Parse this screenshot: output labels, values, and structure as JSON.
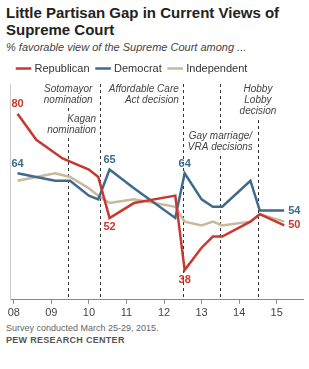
{
  "chart_data": {
    "type": "line",
    "title": "Little Partisan Gap in Current Views of Supreme Court",
    "subtitle": "% favorable view of the Supreme Court among ...",
    "note": "Survey conducted March 25-29, 2015.",
    "source": "PEW RESEARCH CENTER",
    "xlim": [
      2007.9,
      2015.7
    ],
    "xticks": [
      {
        "value": 2008,
        "label": "08"
      },
      {
        "value": 2009,
        "label": "09"
      },
      {
        "value": 2010,
        "label": "10"
      },
      {
        "value": 2011,
        "label": "11"
      },
      {
        "value": 2012,
        "label": "12"
      },
      {
        "value": 2013,
        "label": "13"
      },
      {
        "value": 2014,
        "label": "14"
      },
      {
        "value": 2015,
        "label": "15"
      }
    ],
    "ylim": [
      30,
      88
    ],
    "tick_labels": "x",
    "grid": false,
    "legend": "top",
    "series": [
      {
        "name": "Republican",
        "color": "#c8382e",
        "x": [
          2008.1,
          2008.6,
          2009.3,
          2010.0,
          2010.25,
          2010.55,
          2011.2,
          2012.3,
          2012.55,
          2013.0,
          2013.3,
          2013.55,
          2014.3,
          2014.55,
          2015.2
        ],
        "values": [
          80,
          73,
          68,
          65,
          63,
          52,
          56,
          58,
          38,
          44,
          47,
          47,
          51,
          53,
          50
        ],
        "value_labels": [
          "80",
          null,
          null,
          null,
          null,
          "52",
          null,
          null,
          "38",
          null,
          null,
          null,
          null,
          null,
          "50"
        ]
      },
      {
        "name": "Democrat",
        "color": "#3e6b8c",
        "x": [
          2008.1,
          2009.1,
          2009.5,
          2010.0,
          2010.25,
          2010.55,
          2011.2,
          2012.3,
          2012.55,
          2013.0,
          2013.3,
          2013.55,
          2014.3,
          2014.55,
          2015.2
        ],
        "values": [
          64,
          62,
          62,
          58,
          57,
          65,
          60,
          52,
          64,
          57,
          55,
          55,
          62,
          54,
          54
        ],
        "value_labels": [
          "64",
          null,
          null,
          null,
          null,
          "65",
          null,
          null,
          "64",
          null,
          null,
          null,
          null,
          null,
          "54"
        ]
      },
      {
        "name": "Independent",
        "color": "#c9b89c",
        "x": [
          2008.1,
          2009.1,
          2009.5,
          2010.0,
          2010.25,
          2010.55,
          2011.2,
          2012.3,
          2012.55,
          2013.0,
          2013.3,
          2013.55,
          2014.3,
          2014.55,
          2015.2
        ],
        "values": [
          62,
          64,
          63,
          60,
          58,
          56,
          57,
          55,
          51,
          50,
          51,
          50,
          51,
          53,
          51
        ]
      }
    ],
    "annotations": [
      {
        "text": [
          "Sotomayor",
          "nomination"
        ],
        "x": 2009.45
      },
      {
        "text": [
          "Kagan",
          "nomination"
        ],
        "x": 2010.3
      },
      {
        "text": [
          "Affordable Care",
          "Act decision"
        ],
        "x": 2012.5
      },
      {
        "text": [
          "Gay marriage/",
          "VRA decisions"
        ],
        "x": 2013.5
      },
      {
        "text": [
          "Hobby",
          "Lobby",
          "decision"
        ],
        "x": 2014.5
      }
    ]
  }
}
